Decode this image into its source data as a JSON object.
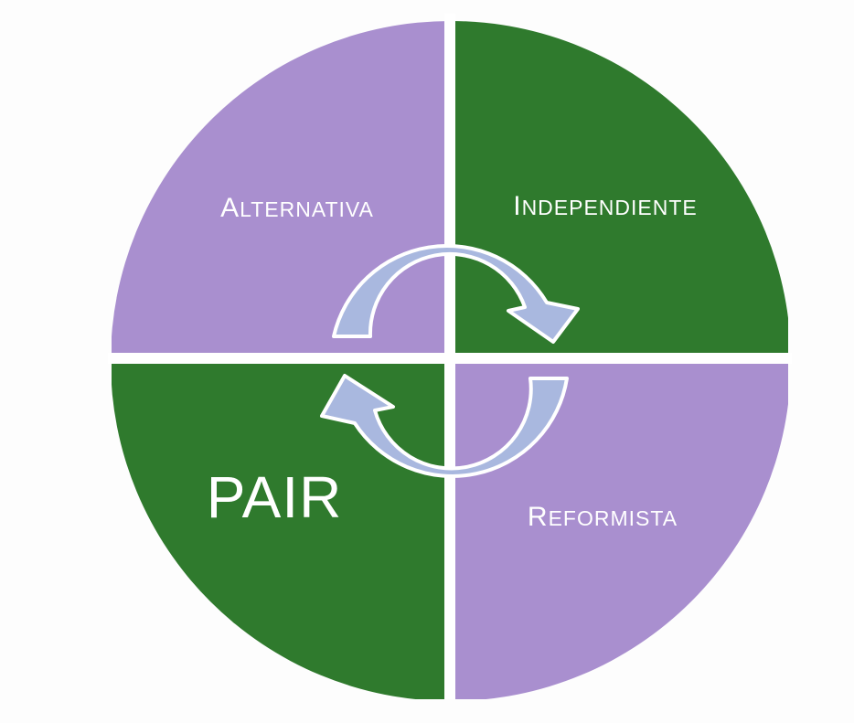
{
  "diagram": {
    "quadrants": {
      "top_left": {
        "label": "Alternativa",
        "color": "#a98fcf"
      },
      "top_right": {
        "label": "Independiente",
        "color": "#2f7a2d"
      },
      "bottom_left": {
        "label": "PAIR",
        "color": "#2f7a2d"
      },
      "bottom_right": {
        "label": "Reformista",
        "color": "#a98fcf"
      }
    },
    "divider_color": "#ffffff",
    "arrow_fill": "#a9b8df",
    "arrow_stroke": "#ffffff"
  }
}
